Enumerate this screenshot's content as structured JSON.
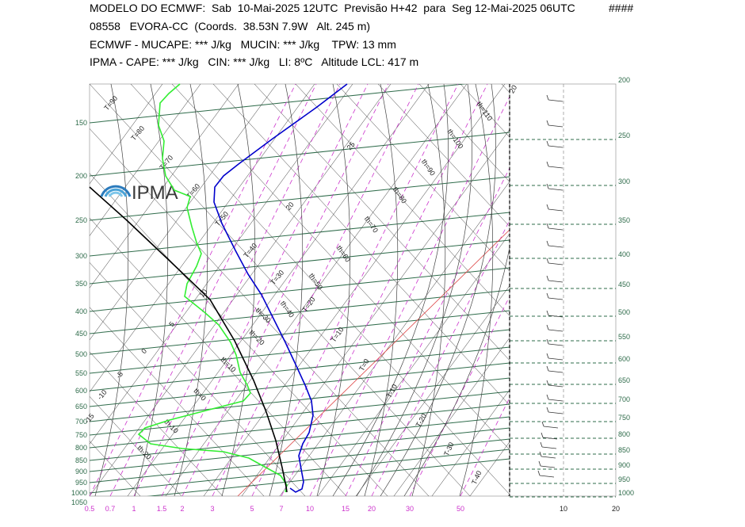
{
  "header": {
    "line1": "MODELO DO ECMWF:  Sab  10-Mai-2025 12UTC  Previsão H+42  para  Seg 12-Mai-2025 06UTC",
    "line1_right": "####",
    "line2": "08558   EVORA-CC  (Coords.  38.53N 7.9W   Alt. 245 m)",
    "line3": "ECMWF - MUCAPE: *** J/kg   MUCIN: *** J/kg    TPW: 13 mm",
    "line4": "IPMA - CAPE: *** J/kg   CIN: *** J/kg   LI: 8ºC   Altitude LCL: 417 m"
  },
  "logo": {
    "text": "IPMA"
  },
  "colors": {
    "isobar": "#2e6b4a",
    "mixing_ratio": "#cc33cc",
    "temperature_profile": "#0000cc",
    "dewpoint_profile": "#33ee33",
    "parcel": "#000000",
    "adiabat": "#555555",
    "zero_isotherm": "#dd4444"
  },
  "chart_data": {
    "type": "line",
    "title": "",
    "xlabel": "",
    "ylabel": "",
    "pressure_levels_left": [
      "150",
      "200",
      "250",
      "300",
      "350",
      "400",
      "450",
      "500",
      "550",
      "600",
      "650",
      "700",
      "750",
      "800",
      "850",
      "900",
      "950",
      "1000",
      "1050"
    ],
    "pressure_levels_right": [
      "200",
      "250",
      "300",
      "350",
      "400",
      "450",
      "500",
      "550",
      "600",
      "650",
      "700",
      "750",
      "800",
      "850",
      "900",
      "950",
      "1000"
    ],
    "mixing_ratio_labels": [
      "0.5",
      "0.7",
      "1",
      "1.5",
      "2",
      "3",
      "5",
      "7",
      "10",
      "15",
      "20",
      "30",
      "50"
    ],
    "wind_axis_labels": [
      "10",
      "20"
    ],
    "isotherm_labels": [
      "T=90",
      "T=80",
      "T=70",
      "T=60",
      "T=50",
      "T=40",
      "T=30",
      "T=20",
      "T=10",
      "T=0",
      "T-10",
      "T-20",
      "T-30",
      "T-40"
    ],
    "theta_labels": [
      "th=110",
      "th=100",
      "th=90",
      "th=80",
      "th=70",
      "th=60",
      "th=50",
      "th=40",
      "th=30",
      "th=20",
      "th=10",
      "th=0",
      "th-10",
      "th-20"
    ],
    "theta_e_labels": [
      "25",
      "20",
      "10",
      "5",
      "0",
      "-5",
      "-10",
      "-15",
      "-20"
    ],
    "top_label": "20",
    "series": []
  }
}
